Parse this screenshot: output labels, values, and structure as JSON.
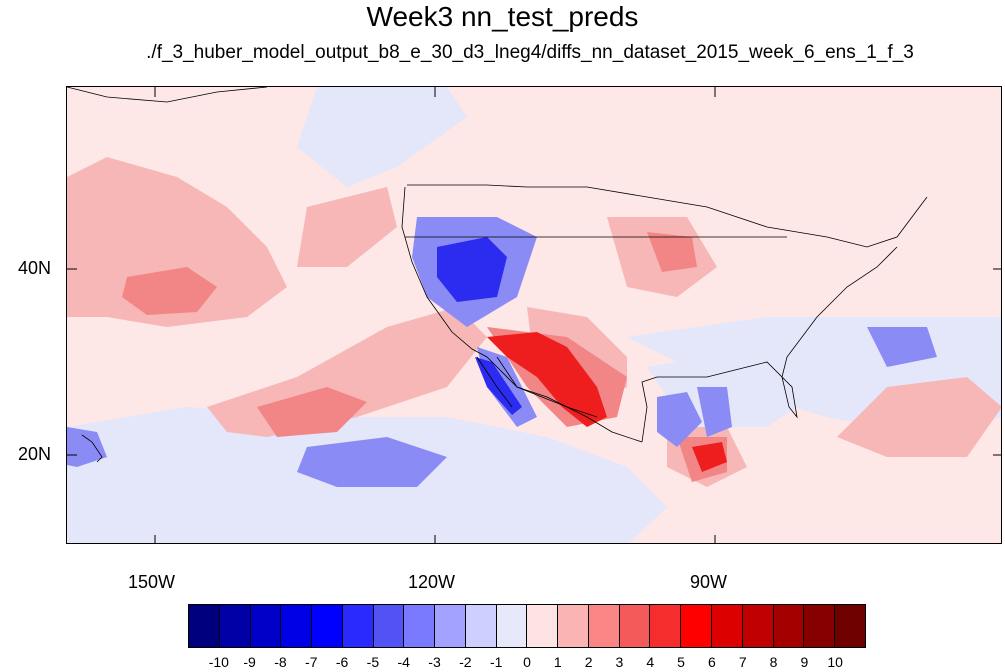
{
  "title": "Week3 nn_test_preds",
  "subtitle": "./f_3_huber_model_output_b8_e_30_d3_lneg4/diffs_nn_dataset_2015_week_6_ens_1_f_3",
  "map": {
    "lat_labels": [
      "40N",
      "20N"
    ],
    "lon_labels": [
      "150W",
      "120W",
      "90W"
    ]
  },
  "colorbar": {
    "labels": [
      "-10",
      "-9",
      "-8",
      "-7",
      "-6",
      "-5",
      "-4",
      "-3",
      "-2",
      "-1",
      "0",
      "1",
      "2",
      "3",
      "4",
      "5",
      "6",
      "7",
      "8",
      "9",
      "10"
    ],
    "colors": [
      "#00007f",
      "#0000a6",
      "#0000c8",
      "#0000e6",
      "#0000ff",
      "#2a2aff",
      "#5252f5",
      "#7a7aff",
      "#a3a3ff",
      "#cfcfff",
      "#e8e8fb",
      "#fde3e3",
      "#fbb4b4",
      "#f98585",
      "#f55a5a",
      "#f52d2d",
      "#ff0000",
      "#dc0000",
      "#c00000",
      "#a40000",
      "#860000",
      "#6e0000"
    ]
  }
}
